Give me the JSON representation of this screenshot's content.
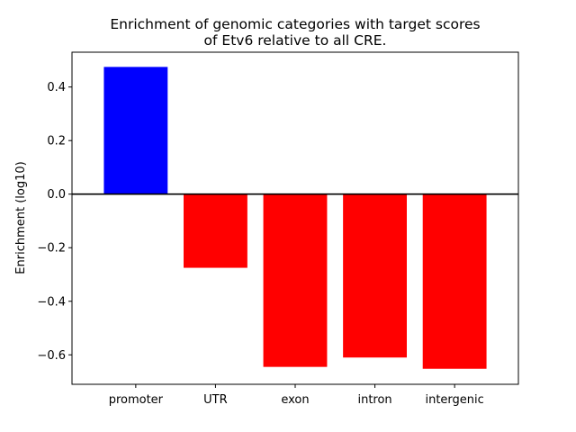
{
  "chart_data": {
    "type": "bar",
    "title_lines": [
      "Enrichment of genomic categories with target scores",
      "of Etv6 relative to all CRE."
    ],
    "xlabel": "",
    "ylabel": "Enrichment (log10)",
    "categories": [
      "promoter",
      "UTR",
      "exon",
      "intron",
      "intergenic"
    ],
    "values": [
      0.475,
      -0.275,
      -0.645,
      -0.61,
      -0.652
    ],
    "bar_colors": [
      "#0000ff",
      "#ff0000",
      "#ff0000",
      "#ff0000",
      "#ff0000"
    ],
    "ylim": [
      -0.71,
      0.53
    ],
    "yticks": [
      0.4,
      0.2,
      0.0,
      -0.2,
      -0.4,
      -0.6
    ],
    "ytick_labels": [
      "0.4",
      "0.2",
      "0.0",
      "−0.2",
      "−0.4",
      "−0.6"
    ],
    "zero_line": true,
    "grid": false
  }
}
